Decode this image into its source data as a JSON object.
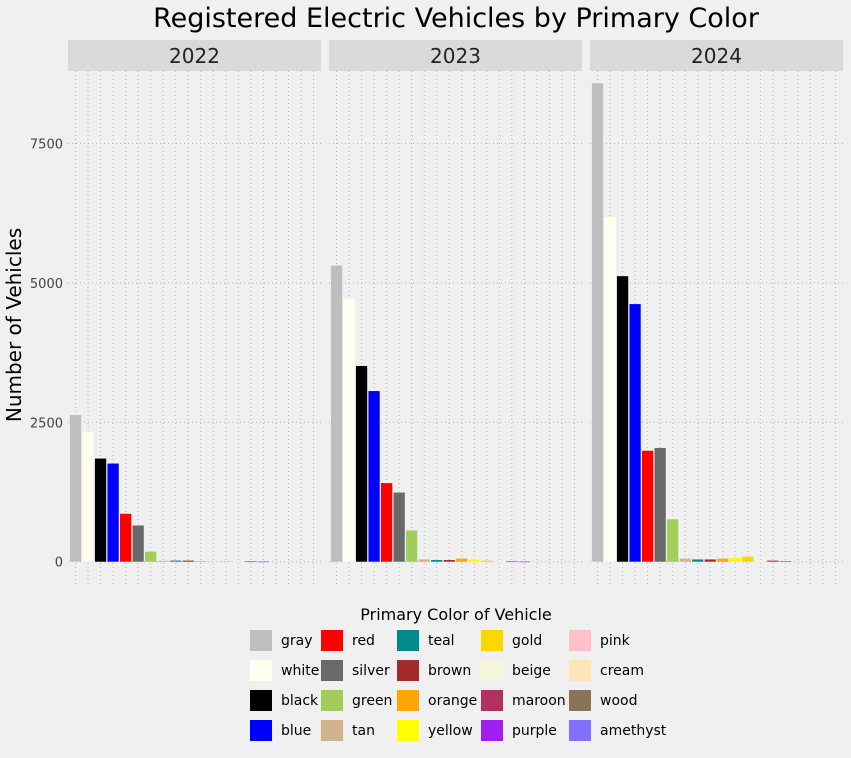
{
  "chart_data": {
    "type": "bar",
    "title": "Registered Electric Vehicles by Primary Color",
    "xlabel": "",
    "ylabel": "Number of Vehicles",
    "ylim": [
      -400,
      8800
    ],
    "yticks": [
      0,
      2500,
      5000,
      7500
    ],
    "ytick_labels": [
      "0",
      "2500",
      "5000",
      "7500"
    ],
    "grid": true,
    "legend_position": "bottom",
    "legend_title": "Primary Color of Vehicle",
    "categories": [
      "gray",
      "white",
      "black",
      "blue",
      "red",
      "silver",
      "green",
      "tan",
      "teal",
      "brown",
      "orange",
      "yellow",
      "gold",
      "beige",
      "maroon",
      "purple",
      "pink",
      "cream",
      "wood",
      "amethyst"
    ],
    "colors": [
      "#bebebe",
      "#fffff0",
      "#000000",
      "#0000ff",
      "#ff0000",
      "#696969",
      "#a2cd5a",
      "#d2b48c",
      "#008b8b",
      "#a52a2a",
      "#ffa500",
      "#ffff00",
      "#ffd700",
      "#f5f5dc",
      "#b03060",
      "#a020f0",
      "#ffc0cb",
      "#ffe4b5",
      "#8b7355",
      "#8470ff"
    ],
    "panels": [
      {
        "label": "2022",
        "values": [
          2630,
          2330,
          1850,
          1760,
          860,
          650,
          180,
          15,
          20,
          20,
          10,
          10,
          5,
          5,
          5,
          2,
          0,
          0,
          0,
          0
        ]
      },
      {
        "label": "2023",
        "values": [
          5310,
          4720,
          3510,
          3060,
          1410,
          1240,
          560,
          40,
          30,
          30,
          55,
          40,
          20,
          15,
          5,
          2,
          0,
          0,
          0,
          0
        ]
      },
      {
        "label": "2024",
        "values": [
          8580,
          6180,
          5120,
          4620,
          1990,
          2040,
          760,
          55,
          40,
          40,
          55,
          70,
          90,
          35,
          20,
          5,
          0,
          0,
          0,
          0
        ]
      }
    ]
  }
}
